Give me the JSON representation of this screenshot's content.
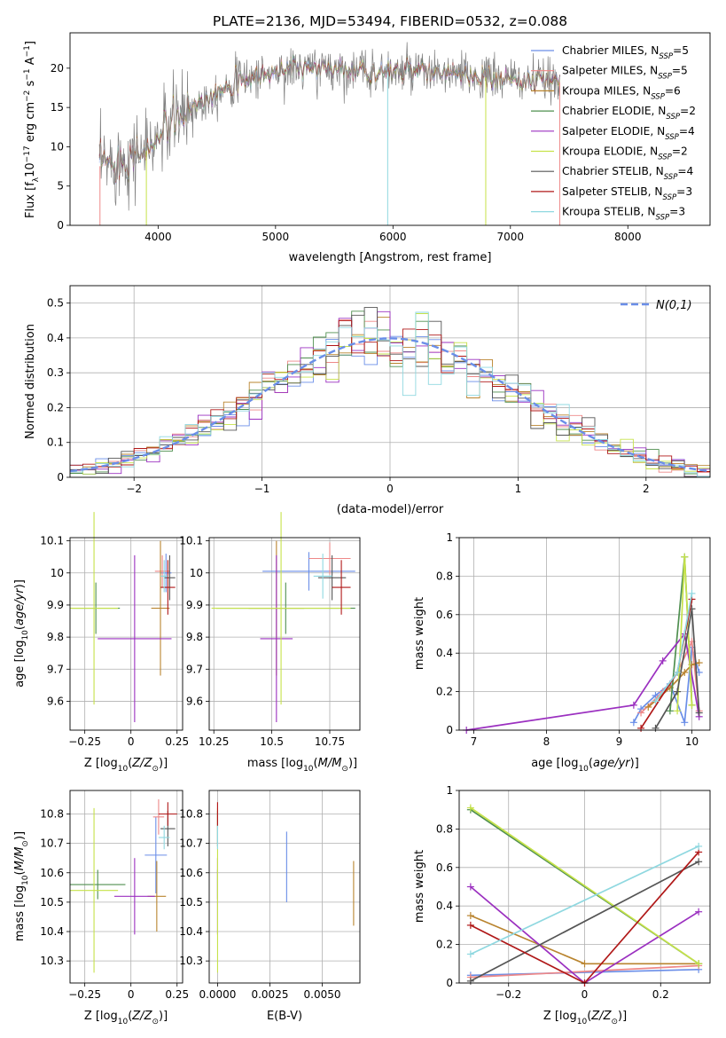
{
  "figure": {
    "title": "PLATE=2136, MJD=53494, FIBERID=0532, z=0.088"
  },
  "legend_entries": [
    {
      "label": "Chabrier MILES, N",
      "sub": "SSP",
      "suffix": "=5",
      "color": "#6a8ee8"
    },
    {
      "label": "Salpeter MILES, N",
      "sub": "SSP",
      "suffix": "=5",
      "color": "#ee8888"
    },
    {
      "label": "Kroupa MILES, N",
      "sub": "SSP",
      "suffix": "=6",
      "color": "#b9842f"
    },
    {
      "label": "Chabrier ELODIE, N",
      "sub": "SSP",
      "suffix": "=2",
      "color": "#4f8f4f"
    },
    {
      "label": "Salpeter ELODIE, N",
      "sub": "SSP",
      "suffix": "=4",
      "color": "#9b30c0"
    },
    {
      "label": "Kroupa ELODIE, N",
      "sub": "SSP",
      "suffix": "=2",
      "color": "#c6e24a"
    },
    {
      "label": "Chabrier STELIB, N",
      "sub": "SSP",
      "suffix": "=4",
      "color": "#555555"
    },
    {
      "label": "Salpeter STELIB, N",
      "sub": "SSP",
      "suffix": "=3",
      "color": "#b01818"
    },
    {
      "label": "Kroupa STELIB, N",
      "sub": "SSP",
      "suffix": "=3",
      "color": "#8fd8e0"
    }
  ],
  "chart_data": [
    {
      "id": "spectrum",
      "type": "line",
      "title": "PLATE=2136, MJD=53494, FIBERID=0532, z=0.088",
      "xlabel": "wavelength [Angstrom, rest frame]",
      "ylabel": "Flux [f_λ 10^-17 erg cm^-2 s^-1 A^-1]",
      "xlim": [
        3250,
        8700
      ],
      "ylim": [
        0,
        24.5
      ],
      "xticks": [
        4000,
        5000,
        6000,
        7000,
        8000
      ],
      "yticks": [
        0,
        5,
        10,
        15,
        20
      ],
      "grid": false,
      "legend": "top-right",
      "continuum": {
        "x": [
          3500,
          3600,
          3700,
          3800,
          3900,
          4000,
          4100,
          4200,
          4300,
          4400,
          4500,
          4600,
          4800,
          5000,
          5200,
          5400,
          5600,
          5800,
          6000,
          6200,
          6400,
          6600,
          6800,
          7000,
          7200,
          7400
        ],
        "y": [
          7.5,
          8.0,
          8.5,
          9.0,
          9.5,
          11.0,
          13.0,
          14.0,
          15.0,
          16.0,
          17.0,
          18.0,
          19.0,
          19.5,
          20.0,
          20.0,
          19.8,
          19.6,
          19.5,
          19.5,
          19.3,
          19.0,
          18.8,
          18.6,
          18.4,
          18.2
        ]
      }
    },
    {
      "id": "residuals",
      "type": "histogram",
      "xlabel": "(data-model)/error",
      "ylabel": "Normed distribution",
      "xlim": [
        -2.5,
        2.5
      ],
      "ylim": [
        0,
        0.55
      ],
      "xticks": [
        -2,
        -1,
        0,
        1,
        2
      ],
      "yticks": [
        0.0,
        0.1,
        0.2,
        0.3,
        0.4,
        0.5
      ],
      "grid": true,
      "legend": "top-right",
      "reference_curve": {
        "name": "N(0,1)",
        "mean": 0,
        "sigma": 1
      }
    },
    {
      "id": "age_vs_Z",
      "type": "errorbar",
      "xlabel": "Z [log10(Z/Z⊙)]",
      "ylabel": "age [log10(age/yr)]",
      "xlim": [
        -0.33,
        0.28
      ],
      "ylim": [
        9.51,
        10.11
      ],
      "xticks": [
        -0.25,
        0.0,
        0.25
      ],
      "yticks": [
        9.6,
        9.7,
        9.8,
        9.9,
        10.0,
        10.1
      ],
      "points": [
        {
          "x": 0.19,
          "xerr": 0.03,
          "y": 10.0,
          "yerr": 0.06
        },
        {
          "x": 0.17,
          "xerr": 0.04,
          "y": 10.005,
          "yerr": 0.05
        },
        {
          "x": 0.16,
          "xerr": 0.05,
          "y": 9.89,
          "yerr": 0.21
        },
        {
          "x": -0.19,
          "xerr": 0.13,
          "y": 9.89,
          "yerr": 0.08
        },
        {
          "x": 0.02,
          "xerr": 0.2,
          "y": 9.795,
          "yerr": 0.26
        },
        {
          "x": -0.2,
          "xerr": 0.13,
          "y": 9.89,
          "yerr": 0.3
        },
        {
          "x": 0.21,
          "xerr": 0.03,
          "y": 9.985,
          "yerr": 0.07
        },
        {
          "x": 0.2,
          "xerr": 0.04,
          "y": 9.955,
          "yerr": 0.085
        },
        {
          "x": 0.18,
          "xerr": 0.02,
          "y": 9.99,
          "yerr": 0.05
        }
      ]
    },
    {
      "id": "age_vs_mass",
      "type": "errorbar",
      "xlabel": "mass [log10(M/M⊙)]",
      "ylabel": "",
      "xlim": [
        10.23,
        10.88
      ],
      "ylim": [
        9.51,
        10.11
      ],
      "xticks": [
        10.25,
        10.5,
        10.75
      ],
      "yticks": [
        9.6,
        9.7,
        9.8,
        9.9,
        10.0,
        10.1
      ],
      "points": [
        {
          "x": 10.66,
          "xerr": 0.2,
          "y": 10.005,
          "yerr": 0.06
        },
        {
          "x": 10.75,
          "xerr": 0.09,
          "y": 10.045,
          "yerr": 0.05
        },
        {
          "x": 10.52,
          "xerr": 0.12,
          "y": 9.89,
          "yerr": 0.21
        },
        {
          "x": 10.56,
          "xerr": 0.3,
          "y": 9.89,
          "yerr": 0.08
        },
        {
          "x": 10.52,
          "xerr": 0.07,
          "y": 9.795,
          "yerr": 0.26
        },
        {
          "x": 10.54,
          "xerr": 0.3,
          "y": 9.89,
          "yerr": 0.3
        },
        {
          "x": 10.76,
          "xerr": 0.06,
          "y": 9.985,
          "yerr": 0.07
        },
        {
          "x": 10.8,
          "xerr": 0.04,
          "y": 9.955,
          "yerr": 0.085
        },
        {
          "x": 10.72,
          "xerr": 0.04,
          "y": 9.99,
          "yerr": 0.07
        }
      ]
    },
    {
      "id": "mass_weight_vs_age",
      "type": "line",
      "xlabel": "age [log10(age/yr)]",
      "ylabel": "mass weight",
      "xlim": [
        6.8,
        10.25
      ],
      "ylim": [
        0,
        1
      ],
      "xticks": [
        7,
        8,
        9,
        10
      ],
      "yticks": [
        0.0,
        0.2,
        0.4,
        0.6,
        0.8,
        1.0
      ],
      "series": [
        {
          "x": [
            9.2,
            9.3,
            9.5,
            9.7,
            9.9,
            10.0,
            10.1
          ],
          "y": [
            0.04,
            0.11,
            0.18,
            0.24,
            0.04,
            0.43,
            0.3
          ]
        },
        {
          "x": [
            9.3,
            9.6,
            9.8,
            10.0,
            10.1
          ],
          "y": [
            0.09,
            0.2,
            0.3,
            0.46,
            0.1
          ]
        },
        {
          "x": [
            9.4,
            9.7,
            9.9,
            10.0,
            10.1
          ],
          "y": [
            0.12,
            0.22,
            0.3,
            0.34,
            0.35
          ]
        },
        {
          "x": [
            9.7,
            9.9,
            10.0
          ],
          "y": [
            0.1,
            0.9,
            0.13
          ]
        },
        {
          "x": [
            6.9,
            9.2,
            9.6,
            9.9,
            10.1
          ],
          "y": [
            0.0,
            0.13,
            0.36,
            0.5,
            0.07
          ]
        },
        {
          "x": [
            9.8,
            9.9,
            10.0
          ],
          "y": [
            0.1,
            0.9,
            0.13
          ]
        },
        {
          "x": [
            9.5,
            9.8,
            10.0,
            10.1
          ],
          "y": [
            0.01,
            0.2,
            0.63,
            0.09
          ]
        },
        {
          "x": [
            9.3,
            9.8,
            10.0
          ],
          "y": [
            0.01,
            0.3,
            0.68
          ]
        },
        {
          "x": [
            9.5,
            9.8,
            10.0
          ],
          "y": [
            0.15,
            0.3,
            0.71
          ]
        }
      ]
    },
    {
      "id": "mass_vs_Z",
      "type": "errorbar",
      "xlabel": "Z [log10(Z/Z⊙)]",
      "ylabel": "mass [log10(M/M⊙)]",
      "xlim": [
        -0.33,
        0.28
      ],
      "ylim": [
        10.225,
        10.88
      ],
      "xticks": [
        -0.25,
        0.0,
        0.25
      ],
      "yticks": [
        10.3,
        10.4,
        10.5,
        10.6,
        10.7,
        10.8
      ],
      "points": [
        {
          "x": 0.135,
          "xerr": 0.06,
          "y": 10.66,
          "yerr": 0.13
        },
        {
          "x": 0.15,
          "xerr": 0.03,
          "y": 10.79,
          "yerr": 0.06
        },
        {
          "x": 0.14,
          "xerr": 0.05,
          "y": 10.52,
          "yerr": 0.12
        },
        {
          "x": -0.18,
          "xerr": 0.15,
          "y": 10.56,
          "yerr": 0.05
        },
        {
          "x": 0.02,
          "xerr": 0.11,
          "y": 10.52,
          "yerr": 0.13
        },
        {
          "x": -0.2,
          "xerr": 0.13,
          "y": 10.54,
          "yerr": 0.28
        },
        {
          "x": 0.2,
          "xerr": 0.04,
          "y": 10.75,
          "yerr": 0.06
        },
        {
          "x": 0.2,
          "xerr": 0.05,
          "y": 10.8,
          "yerr": 0.04
        },
        {
          "x": 0.18,
          "xerr": 0.03,
          "y": 10.72,
          "yerr": 0.04
        }
      ]
    },
    {
      "id": "mass_vs_ebv",
      "type": "errorbar",
      "xlabel": "E(B-V)",
      "ylabel": "",
      "xlim": [
        -0.0004,
        0.0068
      ],
      "ylim": [
        10.225,
        10.88
      ],
      "xticks": [
        0.0,
        0.0025,
        0.005
      ],
      "xticklabels": [
        "0.0000",
        "0.0025",
        "0.0050"
      ],
      "yticks": [
        10.3,
        10.4,
        10.5,
        10.6,
        10.7,
        10.8
      ],
      "points": [
        {
          "x": 0.0033,
          "xerr": 0,
          "y": 10.62,
          "yerr": 0.12
        },
        {
          "x": 0.0,
          "xerr": 0,
          "y": 10.8,
          "yerr": 0.04
        },
        {
          "x": 0.0065,
          "xerr": 0,
          "y": 10.53,
          "yerr": 0.11
        },
        {
          "x": 0.0,
          "xerr": 0,
          "y": 10.56,
          "yerr": 0.05
        },
        {
          "x": 0.0,
          "xerr": 0,
          "y": 10.52,
          "yerr": 0.13
        },
        {
          "x": 0.0,
          "xerr": 0,
          "y": 10.54,
          "yerr": 0.28
        },
        {
          "x": 0.0,
          "xerr": 0,
          "y": 10.75,
          "yerr": 0.06
        },
        {
          "x": 0.0,
          "xerr": 0,
          "y": 10.8,
          "yerr": 0.04
        },
        {
          "x": 0.0,
          "xerr": 0,
          "y": 10.72,
          "yerr": 0.04
        }
      ]
    },
    {
      "id": "mass_weight_vs_Z",
      "type": "line",
      "xlabel": "Z [log10(Z/Z⊙)]",
      "ylabel": "mass weight",
      "xlim": [
        -0.33,
        0.33
      ],
      "ylim": [
        0,
        1
      ],
      "xticks": [
        -0.2,
        0.0,
        0.2
      ],
      "yticks": [
        0.0,
        0.2,
        0.4,
        0.6,
        0.8,
        1.0
      ],
      "series": [
        {
          "x": [
            -0.3,
            0.3
          ],
          "y": [
            0.04,
            0.07
          ]
        },
        {
          "x": [
            -0.3,
            0.3
          ],
          "y": [
            0.03,
            0.09
          ]
        },
        {
          "x": [
            -0.3,
            0.0,
            0.3
          ],
          "y": [
            0.35,
            0.1,
            0.1
          ]
        },
        {
          "x": [
            -0.3,
            0.3
          ],
          "y": [
            0.9,
            0.1
          ]
        },
        {
          "x": [
            -0.3,
            0.0,
            0.3
          ],
          "y": [
            0.5,
            0.0,
            0.37
          ]
        },
        {
          "x": [
            -0.3,
            0.3
          ],
          "y": [
            0.91,
            0.1
          ]
        },
        {
          "x": [
            -0.3,
            0.3
          ],
          "y": [
            0.01,
            0.63
          ]
        },
        {
          "x": [
            -0.3,
            0.0,
            0.3
          ],
          "y": [
            0.3,
            0.0,
            0.68
          ]
        },
        {
          "x": [
            -0.3,
            0.3
          ],
          "y": [
            0.15,
            0.71
          ]
        }
      ]
    }
  ]
}
